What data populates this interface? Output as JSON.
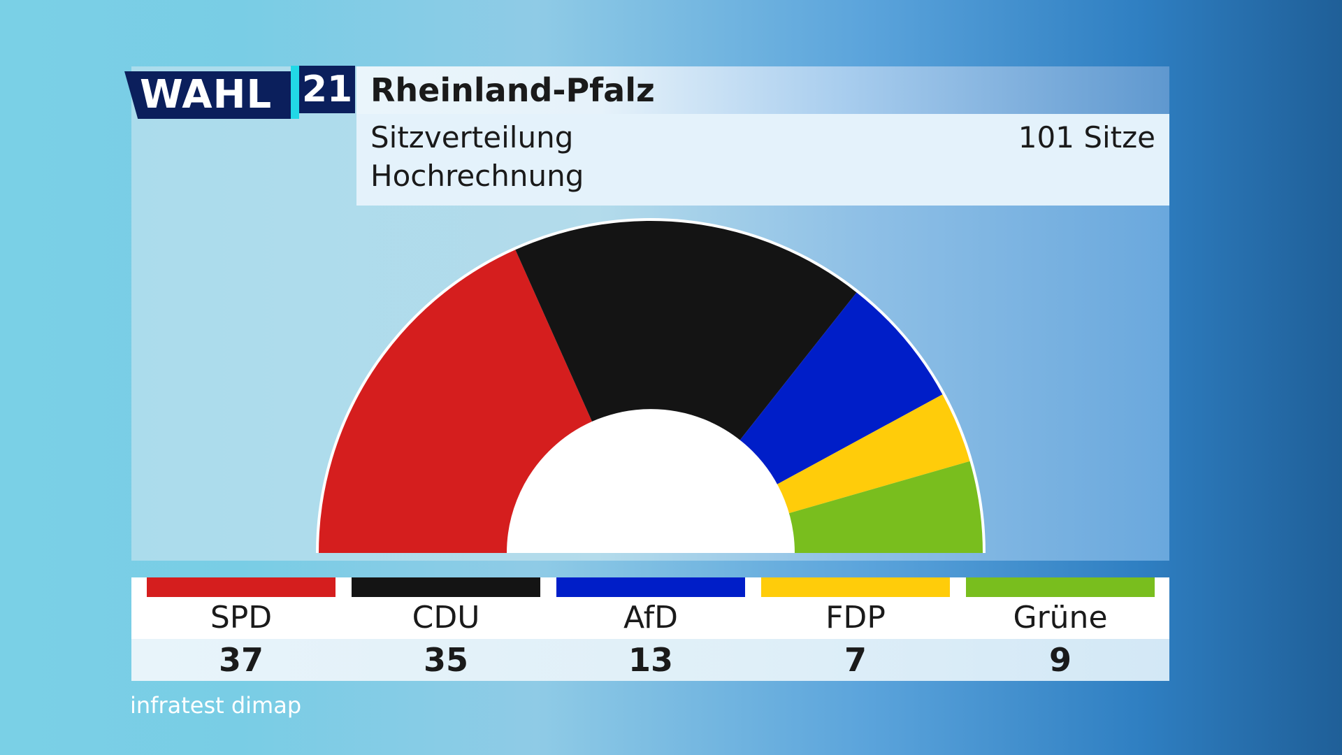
{
  "logo": {
    "word": "WAHL",
    "year": "21"
  },
  "header": {
    "title": "Rheinland-Pfalz",
    "line1": "Sitzverteilung",
    "line2": "Hochrechnung",
    "total": "101 Sitze"
  },
  "chart_data": {
    "type": "pie",
    "style": "half-donut",
    "title": "Sitzverteilung",
    "total_seats": 101,
    "categories": [
      "SPD",
      "CDU",
      "AfD",
      "FDP",
      "Grüne"
    ],
    "values": [
      37,
      35,
      13,
      7,
      9
    ],
    "colors": [
      "#d51e1e",
      "#141414",
      "#001ec8",
      "#ffcc0a",
      "#79be1e"
    ]
  },
  "legend": [
    {
      "name": "SPD",
      "seats": "37",
      "color": "#d51e1e"
    },
    {
      "name": "CDU",
      "seats": "35",
      "color": "#141414"
    },
    {
      "name": "AfD",
      "seats": "13",
      "color": "#001ec8"
    },
    {
      "name": "FDP",
      "seats": "7",
      "color": "#ffcc0a"
    },
    {
      "name": "Grüne",
      "seats": "9",
      "color": "#79be1e"
    }
  ],
  "source": "infratest dimap"
}
